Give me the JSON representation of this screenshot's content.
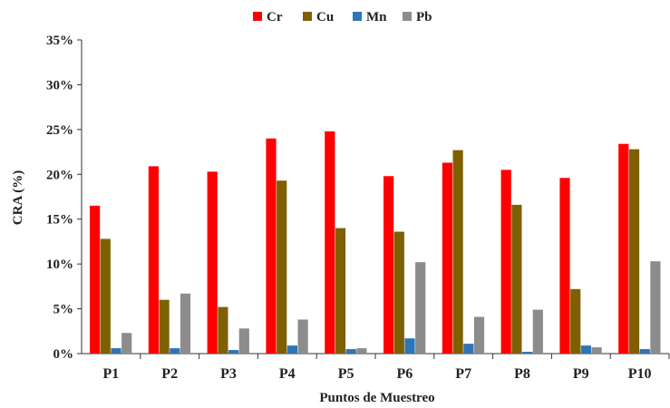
{
  "chart_data": {
    "type": "bar",
    "categories": [
      "P1",
      "P2",
      "P3",
      "P4",
      "P5",
      "P6",
      "P7",
      "P8",
      "P9",
      "P10"
    ],
    "series": [
      {
        "name": "Cr",
        "color": "#ff0000",
        "values": [
          16.5,
          20.9,
          20.3,
          24.0,
          24.8,
          19.8,
          21.3,
          20.5,
          19.6,
          23.4
        ]
      },
      {
        "name": "Cu",
        "color": "#7f6000",
        "values": [
          12.8,
          6.0,
          5.2,
          19.3,
          14.0,
          13.6,
          22.7,
          16.6,
          7.2,
          22.8
        ]
      },
      {
        "name": "Mn",
        "color": "#2e75b6",
        "values": [
          0.6,
          0.6,
          0.4,
          0.9,
          0.5,
          1.7,
          1.1,
          0.2,
          0.9,
          0.5
        ]
      },
      {
        "name": "Pb",
        "color": "#8c8c8c",
        "values": [
          2.3,
          6.7,
          2.8,
          3.8,
          0.6,
          10.2,
          4.1,
          4.9,
          0.7,
          10.3
        ]
      }
    ],
    "xlabel": "Puntos de Muestreo",
    "ylabel": "CRA (%)",
    "ylim": [
      0,
      35
    ],
    "yticks": [
      "0%",
      "5%",
      "10%",
      "15%",
      "20%",
      "25%",
      "30%",
      "35%"
    ],
    "ytick_values": [
      0,
      5,
      10,
      15,
      20,
      25,
      30,
      35
    ],
    "legend_position": "top",
    "grid": false
  }
}
